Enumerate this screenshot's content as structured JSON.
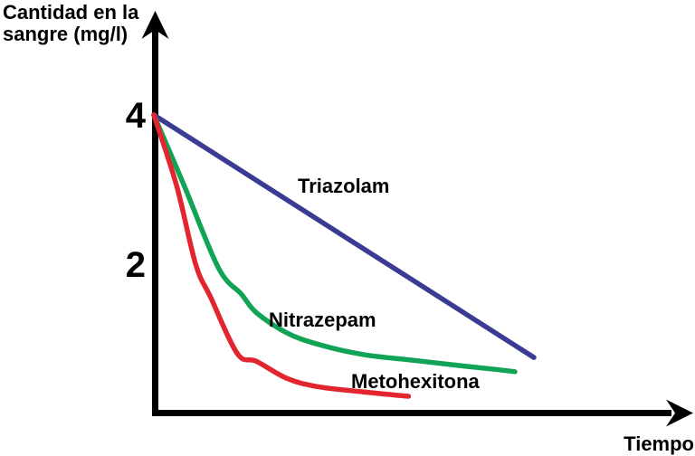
{
  "page": {
    "background": "#ffffff",
    "text_color": "#000000"
  },
  "chart_data": {
    "type": "line",
    "title": "",
    "ylabel": "Cantidad en la sangre (mg/l)",
    "ylabel_lines": [
      "Cantidad en la",
      "sangre (mg/l)"
    ],
    "xlabel": "Tiempo",
    "x_axis": {
      "label": "Tiempo",
      "tick_labels": [],
      "range_units": [
        0,
        14
      ],
      "note": "no numeric ticks shown, time axis unlabeled"
    },
    "y_axis": {
      "unit": "mg/l",
      "ticks": [
        {
          "value": 4,
          "label": "4"
        },
        {
          "value": 2,
          "label": "2"
        }
      ],
      "range": [
        0,
        5.3
      ]
    },
    "grid": false,
    "legend_position": "inline-curve-labels",
    "axis_color": "#000000",
    "series": [
      {
        "name": "Triazolam",
        "color": "#3b3b94",
        "shape": "straight-line-decline",
        "points": [
          [
            0,
            4.0
          ],
          [
            10,
            0.75
          ]
        ]
      },
      {
        "name": "Nitrazepam",
        "color": "#12a456",
        "shape": "exponential-decay",
        "points": [
          [
            0,
            4.0
          ],
          [
            0.8,
            3.05
          ],
          [
            1.7,
            1.95
          ],
          [
            2.3,
            1.6
          ],
          [
            2.7,
            1.35
          ],
          [
            3.5,
            1.08
          ],
          [
            4.3,
            0.93
          ],
          [
            5.5,
            0.79
          ],
          [
            6.7,
            0.72
          ],
          [
            7.9,
            0.65
          ],
          [
            9.0,
            0.59
          ],
          [
            9.5,
            0.56
          ]
        ]
      },
      {
        "name": "Metohexitona",
        "color": "#e2252f",
        "shape": "exponential-decay",
        "points": [
          [
            0,
            4.0
          ],
          [
            0.6,
            3.05
          ],
          [
            1.1,
            2.0
          ],
          [
            1.5,
            1.55
          ],
          [
            2.2,
            0.8
          ],
          [
            2.7,
            0.7
          ],
          [
            3.5,
            0.47
          ],
          [
            4.3,
            0.36
          ],
          [
            5.5,
            0.29
          ],
          [
            6.7,
            0.23
          ]
        ]
      }
    ]
  }
}
